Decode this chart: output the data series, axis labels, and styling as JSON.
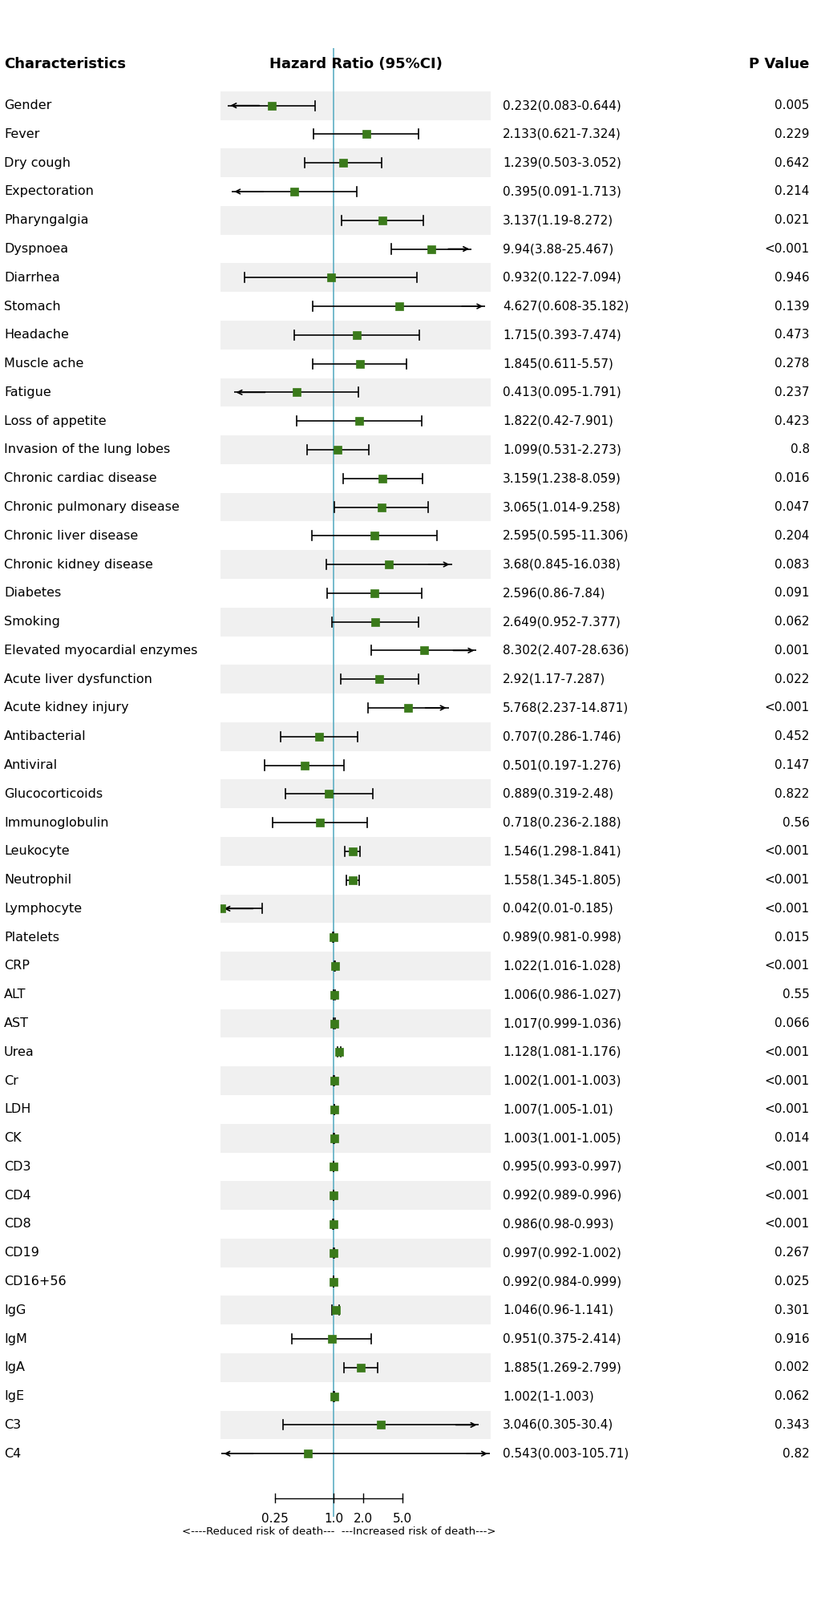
{
  "rows": [
    {
      "label": "Gender",
      "hr": 0.232,
      "lo": 0.083,
      "hi": 0.644,
      "ci_text": "0.232(0.083-0.644)",
      "pval": "0.005",
      "arrow_lo": true,
      "arrow_hi": false
    },
    {
      "label": "Fever",
      "hr": 2.133,
      "lo": 0.621,
      "hi": 7.324,
      "ci_text": "2.133(0.621-7.324)",
      "pval": "0.229",
      "arrow_lo": false,
      "arrow_hi": false
    },
    {
      "label": "Dry cough",
      "hr": 1.239,
      "lo": 0.503,
      "hi": 3.052,
      "ci_text": "1.239(0.503-3.052)",
      "pval": "0.642",
      "arrow_lo": false,
      "arrow_hi": false
    },
    {
      "label": "Expectoration",
      "hr": 0.395,
      "lo": 0.091,
      "hi": 1.713,
      "ci_text": "0.395(0.091-1.713)",
      "pval": "0.214",
      "arrow_lo": true,
      "arrow_hi": false
    },
    {
      "label": "Pharyngalgia",
      "hr": 3.137,
      "lo": 1.19,
      "hi": 8.272,
      "ci_text": "3.137(1.19-8.272)",
      "pval": "0.021",
      "arrow_lo": false,
      "arrow_hi": false
    },
    {
      "label": "Dyspnoea",
      "hr": 9.94,
      "lo": 3.88,
      "hi": 25.467,
      "ci_text": "9.94(3.88-25.467)",
      "pval": "<0.001",
      "arrow_lo": false,
      "arrow_hi": true
    },
    {
      "label": "Diarrhea",
      "hr": 0.932,
      "lo": 0.122,
      "hi": 7.094,
      "ci_text": "0.932(0.122-7.094)",
      "pval": "0.946",
      "arrow_lo": false,
      "arrow_hi": false
    },
    {
      "label": "Stomach",
      "hr": 4.627,
      "lo": 0.608,
      "hi": 35.182,
      "ci_text": "4.627(0.608-35.182)",
      "pval": "0.139",
      "arrow_lo": false,
      "arrow_hi": true
    },
    {
      "label": "Headache",
      "hr": 1.715,
      "lo": 0.393,
      "hi": 7.474,
      "ci_text": "1.715(0.393-7.474)",
      "pval": "0.473",
      "arrow_lo": false,
      "arrow_hi": false
    },
    {
      "label": "Muscle ache",
      "hr": 1.845,
      "lo": 0.611,
      "hi": 5.57,
      "ci_text": "1.845(0.611-5.57)",
      "pval": "0.278",
      "arrow_lo": false,
      "arrow_hi": false
    },
    {
      "label": "Fatigue",
      "hr": 0.413,
      "lo": 0.095,
      "hi": 1.791,
      "ci_text": "0.413(0.095-1.791)",
      "pval": "0.237",
      "arrow_lo": true,
      "arrow_hi": false
    },
    {
      "label": "Loss of appetite",
      "hr": 1.822,
      "lo": 0.42,
      "hi": 7.901,
      "ci_text": "1.822(0.42-7.901)",
      "pval": "0.423",
      "arrow_lo": false,
      "arrow_hi": false
    },
    {
      "label": "Invasion of the lung lobes",
      "hr": 1.099,
      "lo": 0.531,
      "hi": 2.273,
      "ci_text": "1.099(0.531-2.273)",
      "pval": "0.8",
      "arrow_lo": false,
      "arrow_hi": false
    },
    {
      "label": "Chronic cardiac disease",
      "hr": 3.159,
      "lo": 1.238,
      "hi": 8.059,
      "ci_text": "3.159(1.238-8.059)",
      "pval": "0.016",
      "arrow_lo": false,
      "arrow_hi": false
    },
    {
      "label": "Chronic pulmonary disease",
      "hr": 3.065,
      "lo": 1.014,
      "hi": 9.258,
      "ci_text": "3.065(1.014-9.258)",
      "pval": "0.047",
      "arrow_lo": false,
      "arrow_hi": false
    },
    {
      "label": "Chronic liver disease",
      "hr": 2.595,
      "lo": 0.595,
      "hi": 11.306,
      "ci_text": "2.595(0.595-11.306)",
      "pval": "0.204",
      "arrow_lo": false,
      "arrow_hi": false
    },
    {
      "label": "Chronic kidney disease",
      "hr": 3.68,
      "lo": 0.845,
      "hi": 16.038,
      "ci_text": "3.68(0.845-16.038)",
      "pval": "0.083",
      "arrow_lo": false,
      "arrow_hi": true
    },
    {
      "label": "Diabetes",
      "hr": 2.596,
      "lo": 0.86,
      "hi": 7.84,
      "ci_text": "2.596(0.86-7.84)",
      "pval": "0.091",
      "arrow_lo": false,
      "arrow_hi": false
    },
    {
      "label": "Smoking",
      "hr": 2.649,
      "lo": 0.952,
      "hi": 7.377,
      "ci_text": "2.649(0.952-7.377)",
      "pval": "0.062",
      "arrow_lo": false,
      "arrow_hi": false
    },
    {
      "label": "Elevated myocardial enzymes",
      "hr": 8.302,
      "lo": 2.407,
      "hi": 28.636,
      "ci_text": "8.302(2.407-28.636)",
      "pval": "0.001",
      "arrow_lo": false,
      "arrow_hi": true
    },
    {
      "label": "Acute liver dysfunction",
      "hr": 2.92,
      "lo": 1.17,
      "hi": 7.287,
      "ci_text": "2.92(1.17-7.287)",
      "pval": "0.022",
      "arrow_lo": false,
      "arrow_hi": false
    },
    {
      "label": "Acute kidney injury",
      "hr": 5.768,
      "lo": 2.237,
      "hi": 14.871,
      "ci_text": "5.768(2.237-14.871)",
      "pval": "<0.001",
      "arrow_lo": false,
      "arrow_hi": true
    },
    {
      "label": "Antibacterial",
      "hr": 0.707,
      "lo": 0.286,
      "hi": 1.746,
      "ci_text": "0.707(0.286-1.746)",
      "pval": "0.452",
      "arrow_lo": false,
      "arrow_hi": false
    },
    {
      "label": "Antiviral",
      "hr": 0.501,
      "lo": 0.197,
      "hi": 1.276,
      "ci_text": "0.501(0.197-1.276)",
      "pval": "0.147",
      "arrow_lo": false,
      "arrow_hi": false
    },
    {
      "label": "Glucocorticoids",
      "hr": 0.889,
      "lo": 0.319,
      "hi": 2.48,
      "ci_text": "0.889(0.319-2.48)",
      "pval": "0.822",
      "arrow_lo": false,
      "arrow_hi": false
    },
    {
      "label": "Immunoglobulin",
      "hr": 0.718,
      "lo": 0.236,
      "hi": 2.188,
      "ci_text": "0.718(0.236-2.188)",
      "pval": "0.56",
      "arrow_lo": false,
      "arrow_hi": false
    },
    {
      "label": "Leukocyte",
      "hr": 1.546,
      "lo": 1.298,
      "hi": 1.841,
      "ci_text": "1.546(1.298-1.841)",
      "pval": "<0.001",
      "arrow_lo": false,
      "arrow_hi": false
    },
    {
      "label": "Neutrophil",
      "hr": 1.558,
      "lo": 1.345,
      "hi": 1.805,
      "ci_text": "1.558(1.345-1.805)",
      "pval": "<0.001",
      "arrow_lo": false,
      "arrow_hi": false
    },
    {
      "label": "Lymphocyte",
      "hr": 0.042,
      "lo": 0.01,
      "hi": 0.185,
      "ci_text": "0.042(0.01-0.185)",
      "pval": "<0.001",
      "arrow_lo": true,
      "arrow_hi": false
    },
    {
      "label": "Platelets",
      "hr": 0.989,
      "lo": 0.981,
      "hi": 0.998,
      "ci_text": "0.989(0.981-0.998)",
      "pval": "0.015",
      "arrow_lo": false,
      "arrow_hi": false
    },
    {
      "label": "CRP",
      "hr": 1.022,
      "lo": 1.016,
      "hi": 1.028,
      "ci_text": "1.022(1.016-1.028)",
      "pval": "<0.001",
      "arrow_lo": false,
      "arrow_hi": false
    },
    {
      "label": "ALT",
      "hr": 1.006,
      "lo": 0.986,
      "hi": 1.027,
      "ci_text": "1.006(0.986-1.027)",
      "pval": "0.55",
      "arrow_lo": false,
      "arrow_hi": false
    },
    {
      "label": "AST",
      "hr": 1.017,
      "lo": 0.999,
      "hi": 1.036,
      "ci_text": "1.017(0.999-1.036)",
      "pval": "0.066",
      "arrow_lo": false,
      "arrow_hi": false
    },
    {
      "label": "Urea",
      "hr": 1.128,
      "lo": 1.081,
      "hi": 1.176,
      "ci_text": "1.128(1.081-1.176)",
      "pval": "<0.001",
      "arrow_lo": false,
      "arrow_hi": false
    },
    {
      "label": "Cr",
      "hr": 1.002,
      "lo": 1.001,
      "hi": 1.003,
      "ci_text": "1.002(1.001-1.003)",
      "pval": "<0.001",
      "arrow_lo": false,
      "arrow_hi": false
    },
    {
      "label": "LDH",
      "hr": 1.007,
      "lo": 1.005,
      "hi": 1.01,
      "ci_text": "1.007(1.005-1.01)",
      "pval": "<0.001",
      "arrow_lo": false,
      "arrow_hi": false
    },
    {
      "label": "CK",
      "hr": 1.003,
      "lo": 1.001,
      "hi": 1.005,
      "ci_text": "1.003(1.001-1.005)",
      "pval": "0.014",
      "arrow_lo": false,
      "arrow_hi": false
    },
    {
      "label": "CD3",
      "hr": 0.995,
      "lo": 0.993,
      "hi": 0.997,
      "ci_text": "0.995(0.993-0.997)",
      "pval": "<0.001",
      "arrow_lo": false,
      "arrow_hi": false
    },
    {
      "label": "CD4",
      "hr": 0.992,
      "lo": 0.989,
      "hi": 0.996,
      "ci_text": "0.992(0.989-0.996)",
      "pval": "<0.001",
      "arrow_lo": false,
      "arrow_hi": false
    },
    {
      "label": "CD8",
      "hr": 0.986,
      "lo": 0.98,
      "hi": 0.993,
      "ci_text": "0.986(0.98-0.993)",
      "pval": "<0.001",
      "arrow_lo": false,
      "arrow_hi": false
    },
    {
      "label": "CD19",
      "hr": 0.997,
      "lo": 0.992,
      "hi": 1.002,
      "ci_text": "0.997(0.992-1.002)",
      "pval": "0.267",
      "arrow_lo": false,
      "arrow_hi": false
    },
    {
      "label": "CD16+56",
      "hr": 0.992,
      "lo": 0.984,
      "hi": 0.999,
      "ci_text": "0.992(0.984-0.999)",
      "pval": "0.025",
      "arrow_lo": false,
      "arrow_hi": false
    },
    {
      "label": "IgG",
      "hr": 1.046,
      "lo": 0.96,
      "hi": 1.141,
      "ci_text": "1.046(0.96-1.141)",
      "pval": "0.301",
      "arrow_lo": false,
      "arrow_hi": false
    },
    {
      "label": "IgM",
      "hr": 0.951,
      "lo": 0.375,
      "hi": 2.414,
      "ci_text": "0.951(0.375-2.414)",
      "pval": "0.916",
      "arrow_lo": false,
      "arrow_hi": false
    },
    {
      "label": "IgA",
      "hr": 1.885,
      "lo": 1.269,
      "hi": 2.799,
      "ci_text": "1.885(1.269-2.799)",
      "pval": "0.002",
      "arrow_lo": false,
      "arrow_hi": false
    },
    {
      "label": "IgE",
      "hr": 1.002,
      "lo": 1.0,
      "hi": 1.003,
      "ci_text": "1.002(1-1.003)",
      "pval": "0.062",
      "arrow_lo": false,
      "arrow_hi": false
    },
    {
      "label": "C3",
      "hr": 3.046,
      "lo": 0.305,
      "hi": 30.4,
      "ci_text": "3.046(0.305-30.4)",
      "pval": "0.343",
      "arrow_lo": false,
      "arrow_hi": true
    },
    {
      "label": "C4",
      "hr": 0.543,
      "lo": 0.003,
      "hi": 105.71,
      "ci_text": "0.543(0.003-105.71)",
      "pval": "0.82",
      "arrow_lo": true,
      "arrow_hi": true
    }
  ],
  "xscale_ticks": [
    0.25,
    1.0,
    2.0,
    5.0
  ],
  "xscale_labels": [
    "0.25",
    "1.0",
    "2.0",
    "5.0"
  ],
  "x_min": 0.07,
  "x_max": 40.0,
  "ref_line": 1.0,
  "header_characteristics": "Characteristics",
  "header_hr": "Hazard Ratio (95%CI)",
  "header_pval": "P Value",
  "marker_color": "#3a7a1a",
  "ci_line_color": "#000000",
  "ref_line_color": "#6ab4c8",
  "bg_color_odd": "#f0f0f0",
  "bg_color_even": "#ffffff",
  "footer_text": "<----Reduced risk of death---  ---Increased risk of death--->",
  "label_fontsize": 11.5,
  "header_fontsize": 13,
  "annot_fontsize": 11
}
